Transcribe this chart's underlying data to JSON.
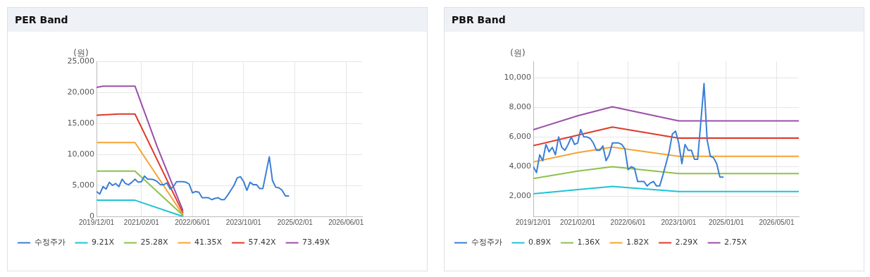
{
  "chart_data": [
    {
      "type": "line",
      "title": "PER Band",
      "ylabel": "(원)",
      "legend": "bottom",
      "grid": true,
      "marker": "none",
      "line_style": "solid",
      "xlim": [
        "2019-12",
        "2026-11"
      ],
      "ylim": [
        0,
        25000
      ],
      "xticks": [
        {
          "value": "2019-12-01",
          "label": "2019/12/01"
        },
        {
          "value": "2021-02-01",
          "label": "2021/02/01"
        },
        {
          "value": "2022-06-01",
          "label": "2022/06/01"
        },
        {
          "value": "2023-10-01",
          "label": "2023/10/01"
        },
        {
          "value": "2025-02-01",
          "label": "2025/02/01"
        },
        {
          "value": "2026-06-01",
          "label": "2026/06/01"
        }
      ],
      "yticks": [
        0,
        {
          "value": 5000,
          "label": "5,000"
        },
        {
          "value": 10000,
          "label": "10,000"
        },
        {
          "value": 15000,
          "label": "15,000"
        },
        {
          "value": 20000,
          "label": "20,000"
        },
        {
          "value": 25000,
          "label": "25,000"
        }
      ],
      "x": [
        "2019-12",
        "2020-01",
        "2020-02",
        "2020-03",
        "2020-04",
        "2020-05",
        "2020-06",
        "2020-07",
        "2020-08",
        "2020-09",
        "2020-10",
        "2020-11",
        "2020-12",
        "2021-01",
        "2021-02",
        "2021-03",
        "2021-04",
        "2021-05",
        "2021-06",
        "2021-07",
        "2021-08",
        "2021-09",
        "2021-10",
        "2021-11",
        "2021-12",
        "2022-01",
        "2022-02",
        "2022-03",
        "2022-04",
        "2022-05",
        "2022-06",
        "2022-07",
        "2022-08",
        "2022-09",
        "2022-10",
        "2022-11",
        "2022-12",
        "2023-01",
        "2023-02",
        "2023-03",
        "2023-04",
        "2023-05",
        "2023-06",
        "2023-07",
        "2023-08",
        "2023-09",
        "2023-10",
        "2023-11",
        "2023-12",
        "2024-01",
        "2024-02",
        "2024-03",
        "2024-04",
        "2024-05",
        "2024-06",
        "2024-07",
        "2024-08",
        "2024-09",
        "2024-10",
        "2024-11",
        "2024-12"
      ],
      "series": [
        {
          "name": "수정주가",
          "color": "#3a7fd5",
          "values": [
            4000,
            3600,
            4800,
            4400,
            5500,
            5000,
            5300,
            4800,
            6000,
            5300,
            5100,
            5500,
            6000,
            5500,
            5600,
            6500,
            6000,
            6000,
            5900,
            5600,
            5100,
            5100,
            5400,
            4400,
            4800,
            5600,
            5600,
            5600,
            5500,
            5200,
            3800,
            4000,
            3900,
            3000,
            3000,
            3000,
            2700,
            2900,
            3000,
            2700,
            2700,
            3400,
            4200,
            5000,
            6200,
            6400,
            5600,
            4200,
            5500,
            5100,
            5100,
            4500,
            4500,
            7000,
            9600,
            5800,
            4700,
            4600,
            4200,
            3300,
            3300
          ]
        },
        {
          "name": "9.21X",
          "color": "#1fc3d6",
          "x": [
            "2019-12",
            "2020-12",
            "2022-03"
          ],
          "values": [
            2600,
            2600,
            0
          ]
        },
        {
          "name": "25.28X",
          "color": "#8dc14b",
          "x": [
            "2019-12",
            "2020-12",
            "2022-03"
          ],
          "values": [
            7300,
            7300,
            200
          ]
        },
        {
          "name": "41.35X",
          "color": "#f5a431",
          "x": [
            "2019-12",
            "2020-12",
            "2022-03"
          ],
          "values": [
            11900,
            11900,
            300
          ]
        },
        {
          "name": "57.42X",
          "color": "#e03a2a",
          "x": [
            "2019-12",
            "2020-07",
            "2020-12",
            "2022-03"
          ],
          "values": [
            16300,
            16500,
            16500,
            600
          ]
        },
        {
          "name": "73.49X",
          "color": "#9b4fa8",
          "x": [
            "2019-12",
            "2020-02",
            "2020-12",
            "2021-07",
            "2022-03"
          ],
          "values": [
            20800,
            21000,
            21000,
            11200,
            1000
          ]
        }
      ]
    },
    {
      "type": "line",
      "title": "PBR Band",
      "ylabel": "(원)",
      "legend": "bottom",
      "grid": true,
      "marker": "none",
      "line_style": "solid",
      "xlim": [
        "2019-12",
        "2026-12"
      ],
      "ylim": [
        650,
        11100
      ],
      "xticks": [
        {
          "value": "2019-12-01",
          "label": "2019/12/01"
        },
        {
          "value": "2021-02-01",
          "label": "2021/02/01"
        },
        {
          "value": "2022-06-01",
          "label": "2022/06/01"
        },
        {
          "value": "2023-10-01",
          "label": "2023/10/01"
        },
        {
          "value": "2025-01-01",
          "label": "2025/01/01"
        },
        {
          "value": "2026-05-01",
          "label": "2026/05/01"
        }
      ],
      "yticks": [
        {
          "value": 2000,
          "label": "2,000"
        },
        {
          "value": 4000,
          "label": "4,000"
        },
        {
          "value": 6000,
          "label": "6,000"
        },
        {
          "value": 8000,
          "label": "8,000"
        },
        {
          "value": 10000,
          "label": "10,000"
        }
      ],
      "x": [
        "2019-12",
        "2020-01",
        "2020-02",
        "2020-03",
        "2020-04",
        "2020-05",
        "2020-06",
        "2020-07",
        "2020-08",
        "2020-09",
        "2020-10",
        "2020-11",
        "2020-12",
        "2021-01",
        "2021-02",
        "2021-03",
        "2021-04",
        "2021-05",
        "2021-06",
        "2021-07",
        "2021-08",
        "2021-09",
        "2021-10",
        "2021-11",
        "2021-12",
        "2022-01",
        "2022-02",
        "2022-03",
        "2022-04",
        "2022-05",
        "2022-06",
        "2022-07",
        "2022-08",
        "2022-09",
        "2022-10",
        "2022-11",
        "2022-12",
        "2023-01",
        "2023-02",
        "2023-03",
        "2023-04",
        "2023-05",
        "2023-06",
        "2023-07",
        "2023-08",
        "2023-09",
        "2023-10",
        "2023-11",
        "2023-12",
        "2024-01",
        "2024-02",
        "2024-03",
        "2024-04",
        "2024-05",
        "2024-06",
        "2024-07",
        "2024-08",
        "2024-09",
        "2024-10",
        "2024-11",
        "2024-12"
      ],
      "series": [
        {
          "name": "수정주가",
          "color": "#3a7fd5",
          "values": [
            4000,
            3600,
            4800,
            4400,
            5500,
            5000,
            5300,
            4800,
            6000,
            5300,
            5100,
            5500,
            6000,
            5500,
            5600,
            6500,
            6000,
            6000,
            5900,
            5600,
            5100,
            5100,
            5400,
            4400,
            4800,
            5600,
            5600,
            5600,
            5500,
            5200,
            3800,
            4000,
            3900,
            3000,
            3000,
            3000,
            2700,
            2900,
            3000,
            2700,
            2700,
            3400,
            4200,
            5000,
            6200,
            6400,
            5600,
            4200,
            5500,
            5100,
            5100,
            4500,
            4500,
            7000,
            9600,
            5800,
            4700,
            4600,
            4200,
            3300,
            3300
          ]
        },
        {
          "name": "0.89X",
          "color": "#1fc3d6",
          "x": [
            "2019-12",
            "2021-02",
            "2022-01",
            "2023-10",
            "2026-12"
          ],
          "values": [
            2170,
            2450,
            2670,
            2330,
            2330
          ]
        },
        {
          "name": "1.36X",
          "color": "#8dc14b",
          "x": [
            "2019-12",
            "2021-02",
            "2022-01",
            "2023-10",
            "2026-12"
          ],
          "values": [
            3200,
            3700,
            4000,
            3540,
            3540
          ]
        },
        {
          "name": "1.82X",
          "color": "#f5a431",
          "x": [
            "2019-12",
            "2021-02",
            "2022-01",
            "2023-10",
            "2026-12"
          ],
          "values": [
            4320,
            4950,
            5320,
            4700,
            4700
          ]
        },
        {
          "name": "2.29X",
          "color": "#e03a2a",
          "x": [
            "2019-12",
            "2021-02",
            "2022-01",
            "2023-10",
            "2026-12"
          ],
          "values": [
            5420,
            6120,
            6670,
            5920,
            5920
          ]
        },
        {
          "name": "2.75X",
          "color": "#9b4fa8",
          "x": [
            "2019-12",
            "2021-02",
            "2022-01",
            "2023-10",
            "2026-12"
          ],
          "values": [
            6490,
            7430,
            8040,
            7090,
            7090
          ]
        }
      ]
    }
  ]
}
